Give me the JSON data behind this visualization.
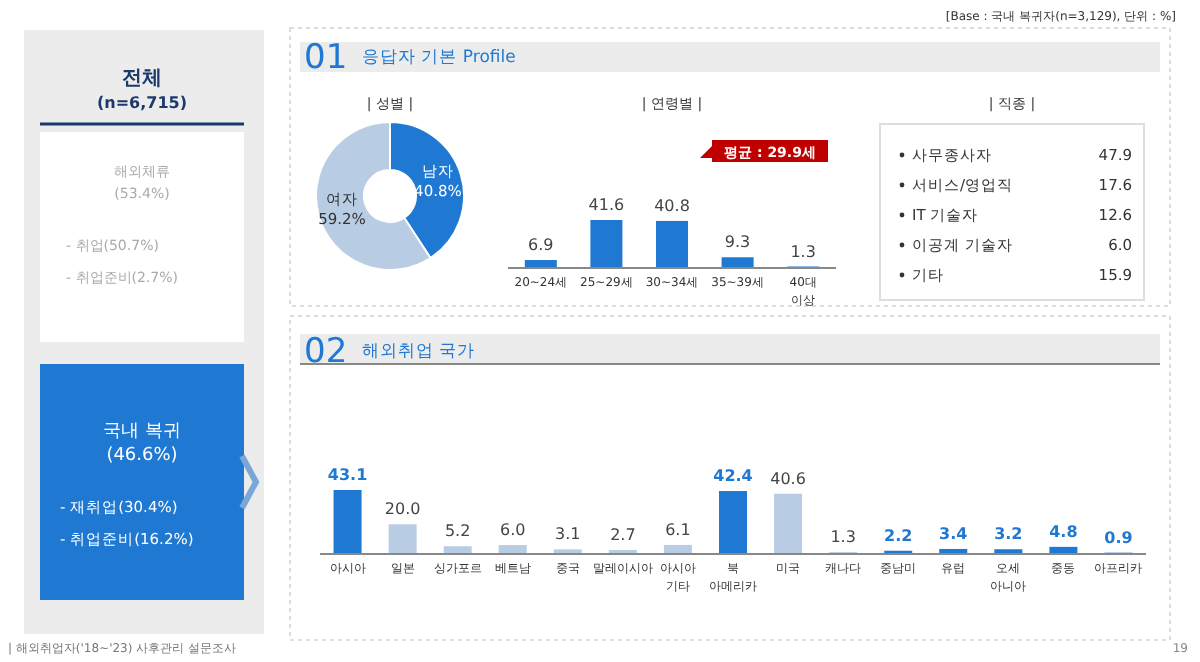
{
  "chart_data": [
    {
      "type": "other",
      "title": "전체",
      "subtitle": "(n=6,715)",
      "annotations": [
        "해외체류 (53.4%)",
        "- 취업(50.7%)",
        "- 취업준비(2.7%)",
        "국내 복귀 (46.6%)",
        "- 재취업(30.4%)",
        "- 취업준비(16.2%)",
        "01 응답자 기본 Profile",
        "02 해외취업 국가",
        "[Base : 국내 복귀자(n=3,129), 단위 : %]",
        "| 해외취업자('18~'23) 사후관리 설문조사",
        "19"
      ]
    },
    {
      "type": "donut",
      "title": "| 성별 |",
      "categories": [
        "남자",
        "여자"
      ],
      "values": [
        40.8,
        59.2
      ],
      "colors": [
        "#1f78d2",
        "#b8cce4"
      ],
      "value_labels": [
        "40.8%",
        "59.2%"
      ]
    },
    {
      "type": "bar",
      "title": "| 연령별 |",
      "categories": [
        "20~24세",
        "25~29세",
        "30~34세",
        "35~39세",
        "40대 이상"
      ],
      "values": [
        6.9,
        41.6,
        40.8,
        9.3,
        1.3
      ],
      "color": "#1f78d2",
      "data_labels": true,
      "annotations": [
        "평균 : 29.9세"
      ]
    },
    {
      "type": "other",
      "title": "| 직종 |",
      "categories": [
        "사무종사자",
        "서비스/영업직",
        "IT 기술자",
        "이공계 기술자",
        "기타"
      ],
      "value_labels": [
        "47.9",
        "17.6",
        "12.6",
        "6.0",
        "15.9"
      ]
    },
    {
      "type": "bar",
      "categories": [
        "아시아",
        "일본",
        "싱가포르",
        "베트남",
        "중국",
        "말레이시아",
        "아시아 기타",
        "북 아메리카",
        "미국",
        "캐나다",
        "중남미",
        "유럽",
        "오세 아니아",
        "중동",
        "아프리카"
      ],
      "values": [
        43.1,
        20.0,
        5.2,
        6.0,
        3.1,
        2.7,
        6.1,
        42.4,
        40.6,
        1.3,
        2.2,
        3.4,
        3.2,
        4.8,
        0.9
      ],
      "value_labels": [
        "43.1",
        "20.0",
        "5.2",
        "6.0",
        "3.1",
        "2.7",
        "6.1",
        "42.4",
        "40.6",
        "1.3",
        "2.2",
        "3.4",
        "3.2",
        "4.8",
        "0.9"
      ],
      "colors": [
        "#1f78d2",
        "#b8cce4",
        "#b8cce4",
        "#b8cce4",
        "#b8cce4",
        "#b8cce4",
        "#b8cce4",
        "#1f78d2",
        "#b8cce4",
        "#b8cce4",
        "#1f78d2",
        "#1f78d2",
        "#1f78d2",
        "#1f78d2",
        "#1f78d2"
      ]
    }
  ]
}
